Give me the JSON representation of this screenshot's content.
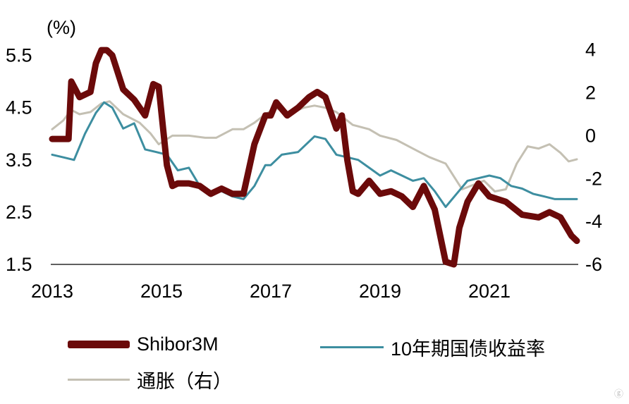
{
  "chart_data": {
    "type": "line",
    "title": "",
    "y_left_unit": "(%)",
    "y_left_ticks": [
      "5.5",
      "4.5",
      "3.5",
      "2.5",
      "1.5"
    ],
    "y_left_range": [
      1.5,
      5.75
    ],
    "y_right_ticks": [
      "4",
      "2",
      "0",
      "-2",
      "-4",
      "-6"
    ],
    "y_right_range": [
      -6,
      4.35
    ],
    "x_tick_labels": [
      "2013",
      "2015",
      "2017",
      "2019",
      "2021"
    ],
    "x_range": [
      2013.0,
      2022.6
    ],
    "grid": false,
    "colors": {
      "shibor": "#6b0a0a",
      "bond": "#3d8ea0",
      "cpi": "#c4c0b3"
    },
    "series": [
      {
        "name": "Shibor3M",
        "axis": "left",
        "x": [
          2013.0,
          2013.3,
          2013.35,
          2013.5,
          2013.7,
          2013.8,
          2013.9,
          2014.0,
          2014.1,
          2014.3,
          2014.5,
          2014.7,
          2014.85,
          2014.95,
          2015.1,
          2015.2,
          2015.3,
          2015.5,
          2015.7,
          2015.9,
          2016.1,
          2016.3,
          2016.5,
          2016.7,
          2016.9,
          2017.0,
          2017.1,
          2017.3,
          2017.5,
          2017.7,
          2017.85,
          2018.0,
          2018.2,
          2018.3,
          2018.4,
          2018.5,
          2018.6,
          2018.8,
          2019.0,
          2019.2,
          2019.4,
          2019.6,
          2019.8,
          2020.0,
          2020.2,
          2020.35,
          2020.45,
          2020.6,
          2020.8,
          2021.0,
          2021.3,
          2021.6,
          2021.9,
          2022.1,
          2022.3,
          2022.5,
          2022.6
        ],
        "y": [
          3.9,
          3.9,
          5.0,
          4.7,
          4.8,
          5.35,
          5.6,
          5.6,
          5.5,
          4.85,
          4.65,
          4.35,
          4.95,
          4.9,
          3.4,
          3.0,
          3.05,
          3.05,
          3.0,
          2.85,
          2.95,
          2.85,
          2.85,
          3.8,
          4.35,
          4.35,
          4.6,
          4.35,
          4.5,
          4.7,
          4.8,
          4.7,
          4.1,
          4.35,
          3.5,
          2.9,
          2.85,
          3.1,
          2.85,
          2.9,
          2.8,
          2.6,
          3.0,
          2.55,
          1.55,
          1.5,
          2.2,
          2.7,
          3.05,
          2.8,
          2.7,
          2.45,
          2.4,
          2.5,
          2.4,
          2.05,
          1.95
        ]
      },
      {
        "name": "10年期国债收益率",
        "axis": "left",
        "x": [
          2013.0,
          2013.2,
          2013.4,
          2013.6,
          2013.8,
          2013.95,
          2014.1,
          2014.3,
          2014.5,
          2014.7,
          2014.9,
          2015.1,
          2015.3,
          2015.5,
          2015.7,
          2015.9,
          2016.1,
          2016.3,
          2016.5,
          2016.7,
          2016.9,
          2017.0,
          2017.2,
          2017.5,
          2017.8,
          2018.0,
          2018.2,
          2018.4,
          2018.6,
          2018.8,
          2019.0,
          2019.2,
          2019.4,
          2019.6,
          2019.8,
          2020.0,
          2020.2,
          2020.4,
          2020.6,
          2020.8,
          2021.0,
          2021.2,
          2021.4,
          2021.6,
          2021.8,
          2022.0,
          2022.2,
          2022.4,
          2022.6
        ],
        "y": [
          3.6,
          3.55,
          3.5,
          4.0,
          4.4,
          4.6,
          4.5,
          4.1,
          4.2,
          3.7,
          3.65,
          3.6,
          3.3,
          3.35,
          3.0,
          2.85,
          2.9,
          2.8,
          2.75,
          3.0,
          3.4,
          3.4,
          3.6,
          3.65,
          3.95,
          3.9,
          3.6,
          3.55,
          3.5,
          3.35,
          3.2,
          3.3,
          3.2,
          3.1,
          3.15,
          2.9,
          2.6,
          2.85,
          3.1,
          3.15,
          3.2,
          3.15,
          3.0,
          2.95,
          2.85,
          2.8,
          2.75,
          2.75,
          2.75
        ]
      },
      {
        "name": "通胀（右）",
        "axis": "right",
        "x": [
          2013.0,
          2013.2,
          2013.35,
          2013.5,
          2013.7,
          2013.9,
          2014.05,
          2014.3,
          2014.6,
          2014.8,
          2014.95,
          2015.2,
          2015.5,
          2015.8,
          2016.0,
          2016.3,
          2016.5,
          2016.7,
          2016.9,
          2017.1,
          2017.3,
          2017.6,
          2017.8,
          2018.0,
          2018.2,
          2018.5,
          2018.8,
          2019.0,
          2019.3,
          2019.6,
          2019.9,
          2020.2,
          2020.5,
          2020.7,
          2020.9,
          2021.1,
          2021.3,
          2021.5,
          2021.7,
          2021.9,
          2022.1,
          2022.3,
          2022.45,
          2022.6
        ],
        "y": [
          0.3,
          0.7,
          1.2,
          1.0,
          1.1,
          1.5,
          1.6,
          1.0,
          0.6,
          0.1,
          -0.4,
          0.0,
          0.0,
          -0.1,
          -0.1,
          0.3,
          0.3,
          0.6,
          1.0,
          1.3,
          1.0,
          1.3,
          1.4,
          1.3,
          1.1,
          0.5,
          0.3,
          0.0,
          -0.2,
          -0.6,
          -1.0,
          -1.3,
          -2.5,
          -2.3,
          -2.1,
          -2.6,
          -2.5,
          -1.3,
          -0.5,
          -0.6,
          -0.4,
          -0.8,
          -1.2,
          -1.1
        ]
      }
    ]
  },
  "legend": {
    "shibor": "Shibor3M",
    "bond": "10年期国债收益率",
    "cpi": "通胀（右）"
  }
}
